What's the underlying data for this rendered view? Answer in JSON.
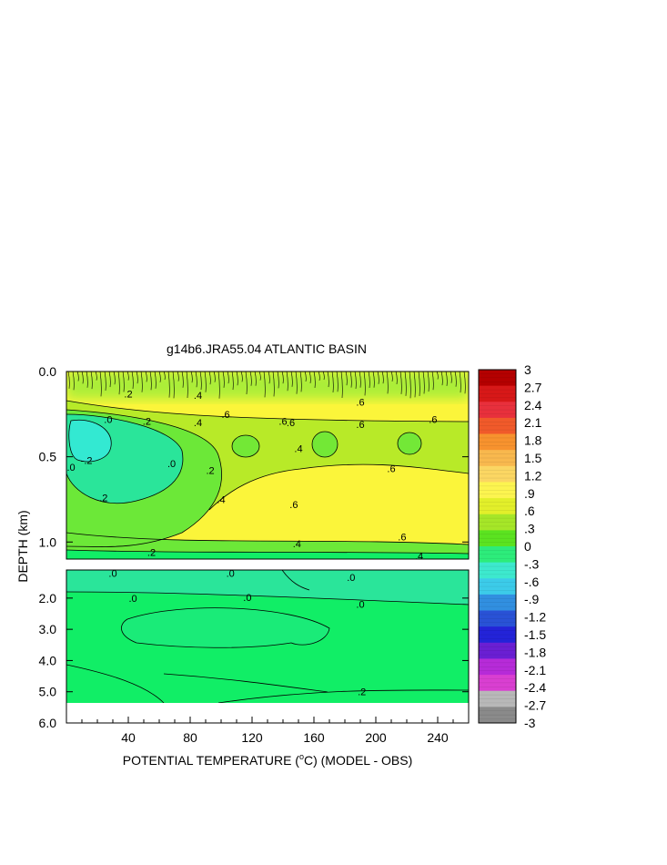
{
  "chart_data": {
    "type": "heatmap",
    "title": "g14b6.JRA55.04 ATLANTIC BASIN",
    "xlabel_prefix": "POTENTIAL TEMPERATURE (",
    "xlabel_unit_sup": "o",
    "xlabel_suffix": "C) (MODEL - OBS)",
    "ylabel": "DEPTH (km)",
    "xlim": [
      0,
      260
    ],
    "x_ticks": [
      "40",
      "80",
      "120",
      "160",
      "200",
      "240"
    ],
    "x_tick_values": [
      40,
      80,
      120,
      160,
      200,
      240
    ],
    "upper_panel": {
      "ylim": [
        0.0,
        1.1
      ],
      "y_ticks": [
        "0.0",
        "0.5",
        "1.0"
      ],
      "y_tick_values": [
        0.0,
        0.5,
        1.0
      ],
      "contour_labels": [
        {
          "text": ".2",
          "x": 40,
          "y": 0.13
        },
        {
          "text": ".4",
          "x": 85,
          "y": 0.14
        },
        {
          "text": ".6",
          "x": 103,
          "y": 0.25
        },
        {
          "text": ".6",
          "x": 140,
          "y": 0.29
        },
        {
          "text": ".6",
          "x": 190,
          "y": 0.18
        },
        {
          "text": ".0",
          "x": 27,
          "y": 0.28
        },
        {
          "text": ".2",
          "x": 52,
          "y": 0.29
        },
        {
          "text": ".4",
          "x": 85,
          "y": 0.3
        },
        {
          "text": ".6",
          "x": 190,
          "y": 0.31
        },
        {
          "text": ".6",
          "x": 237,
          "y": 0.28
        },
        {
          "text": ".6",
          "x": 145,
          "y": 0.3
        },
        {
          "text": ".4",
          "x": 150,
          "y": 0.45
        },
        {
          "text": "-.2",
          "x": 13,
          "y": 0.52
        },
        {
          "text": ".0",
          "x": 68,
          "y": 0.54
        },
        {
          "text": ".2",
          "x": 93,
          "y": 0.58
        },
        {
          "text": ".6",
          "x": 210,
          "y": 0.57
        },
        {
          "text": ".0",
          "x": 3,
          "y": 0.56
        },
        {
          "text": ".4",
          "x": 100,
          "y": 0.75
        },
        {
          "text": ".6",
          "x": 147,
          "y": 0.78
        },
        {
          "text": ".2",
          "x": 24,
          "y": 0.74
        },
        {
          "text": ".6",
          "x": 217,
          "y": 0.97
        },
        {
          "text": ".4",
          "x": 149,
          "y": 1.01
        },
        {
          "text": ".2",
          "x": 55,
          "y": 1.06
        },
        {
          "text": ".4",
          "x": 228,
          "y": 1.08
        }
      ]
    },
    "lower_panel": {
      "ylim": [
        1.1,
        6.0
      ],
      "y_ticks": [
        "2.0",
        "3.0",
        "4.0",
        "5.0",
        "6.0"
      ],
      "y_tick_values": [
        2.0,
        3.0,
        4.0,
        5.0,
        6.0
      ],
      "contour_labels": [
        {
          "text": ".0",
          "x": 30,
          "y": 1.2
        },
        {
          "text": ".0",
          "x": 106,
          "y": 1.2
        },
        {
          "text": ".0",
          "x": 184,
          "y": 1.33
        },
        {
          "text": ".0",
          "x": 43,
          "y": 2.0
        },
        {
          "text": ".0",
          "x": 117,
          "y": 1.98
        },
        {
          "text": ".0",
          "x": 190,
          "y": 2.2
        },
        {
          "text": ".2",
          "x": 191,
          "y": 5.0
        }
      ]
    },
    "colorbar": {
      "labels": [
        "3",
        "2.7",
        "2.4",
        "2.1",
        "1.8",
        "1.5",
        "1.2",
        ".9",
        ".6",
        ".3",
        "0",
        "-.3",
        "-.6",
        "-.9",
        "-1.2",
        "-1.5",
        "-1.8",
        "-2.1",
        "-2.4",
        "-2.7",
        "-3"
      ],
      "values": [
        3,
        2.7,
        2.4,
        2.1,
        1.8,
        1.5,
        1.2,
        0.9,
        0.6,
        0.3,
        0,
        -0.3,
        -0.6,
        -0.9,
        -1.2,
        -1.5,
        -1.8,
        -2.1,
        -2.4,
        -2.7,
        -3
      ],
      "colors": [
        "#b40000",
        "#d71818",
        "#e8303c",
        "#f05a2a",
        "#f7922e",
        "#f8b84e",
        "#fbd663",
        "#fcf450",
        "#e2ef2a",
        "#a6e628",
        "#5be320",
        "#2dec7b",
        "#3de9ce",
        "#3ccbe9",
        "#318fe0",
        "#2952d6",
        "#2323d8",
        "#6a1fd3",
        "#b62bd8",
        "#d93fd1",
        "#b8b8b8",
        "#8a8a8a"
      ]
    },
    "fill_colors": {
      "deep_green": "#11ee66",
      "light_green": "#6ce838",
      "yellow_green": "#b8ea28",
      "yellow": "#fbf53a",
      "cyan": "#33e9d2",
      "teal_green": "#2ae59a"
    },
    "grid": false
  }
}
